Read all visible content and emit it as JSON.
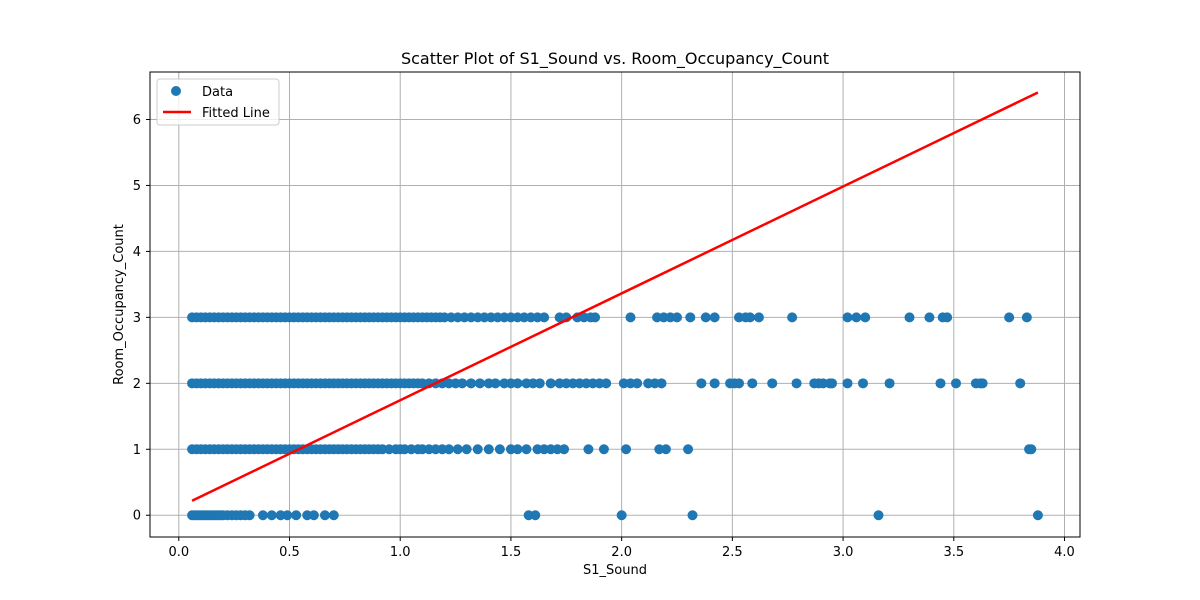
{
  "chart_data": {
    "type": "scatter",
    "title": "Scatter Plot of S1_Sound vs. Room_Occupancy_Count",
    "xlabel": "S1_Sound",
    "ylabel": "Room_Occupancy_Count",
    "xlim": [
      -0.13,
      4.07
    ],
    "ylim": [
      -0.33,
      6.72
    ],
    "xticks": [
      0.0,
      0.5,
      1.0,
      1.5,
      2.0,
      2.5,
      3.0,
      3.5,
      4.0
    ],
    "xtick_labels": [
      "0.0",
      "0.5",
      "1.0",
      "1.5",
      "2.0",
      "2.5",
      "3.0",
      "3.5",
      "4.0"
    ],
    "yticks": [
      0,
      1,
      2,
      3,
      4,
      5,
      6
    ],
    "ytick_labels": [
      "0",
      "1",
      "2",
      "3",
      "4",
      "5",
      "6"
    ],
    "grid": true,
    "legend_position": "upper-left",
    "series": [
      {
        "name": "Data",
        "kind": "scatter",
        "color": "#1f77b4",
        "points": [
          [
            0.06,
            0
          ],
          [
            0.07,
            0
          ],
          [
            0.08,
            0
          ],
          [
            0.09,
            0
          ],
          [
            0.1,
            0
          ],
          [
            0.11,
            0
          ],
          [
            0.12,
            0
          ],
          [
            0.13,
            0
          ],
          [
            0.14,
            0
          ],
          [
            0.15,
            0
          ],
          [
            0.16,
            0
          ],
          [
            0.17,
            0
          ],
          [
            0.18,
            0
          ],
          [
            0.19,
            0
          ],
          [
            0.2,
            0
          ],
          [
            0.22,
            0
          ],
          [
            0.24,
            0
          ],
          [
            0.26,
            0
          ],
          [
            0.28,
            0
          ],
          [
            0.3,
            0
          ],
          [
            0.32,
            0
          ],
          [
            0.38,
            0
          ],
          [
            0.42,
            0
          ],
          [
            0.46,
            0
          ],
          [
            0.49,
            0
          ],
          [
            0.53,
            0
          ],
          [
            0.58,
            0
          ],
          [
            0.61,
            0
          ],
          [
            0.66,
            0
          ],
          [
            0.7,
            0
          ],
          [
            1.58,
            0
          ],
          [
            1.61,
            0
          ],
          [
            2.0,
            0
          ],
          [
            2.32,
            0
          ],
          [
            3.16,
            0
          ],
          [
            3.88,
            0
          ],
          [
            0.06,
            1
          ],
          [
            0.08,
            1
          ],
          [
            0.1,
            1
          ],
          [
            0.12,
            1
          ],
          [
            0.14,
            1
          ],
          [
            0.16,
            1
          ],
          [
            0.18,
            1
          ],
          [
            0.2,
            1
          ],
          [
            0.22,
            1
          ],
          [
            0.24,
            1
          ],
          [
            0.26,
            1
          ],
          [
            0.28,
            1
          ],
          [
            0.3,
            1
          ],
          [
            0.32,
            1
          ],
          [
            0.34,
            1
          ],
          [
            0.36,
            1
          ],
          [
            0.38,
            1
          ],
          [
            0.4,
            1
          ],
          [
            0.42,
            1
          ],
          [
            0.44,
            1
          ],
          [
            0.46,
            1
          ],
          [
            0.48,
            1
          ],
          [
            0.5,
            1
          ],
          [
            0.52,
            1
          ],
          [
            0.54,
            1
          ],
          [
            0.56,
            1
          ],
          [
            0.58,
            1
          ],
          [
            0.6,
            1
          ],
          [
            0.62,
            1
          ],
          [
            0.64,
            1
          ],
          [
            0.66,
            1
          ],
          [
            0.68,
            1
          ],
          [
            0.7,
            1
          ],
          [
            0.72,
            1
          ],
          [
            0.74,
            1
          ],
          [
            0.76,
            1
          ],
          [
            0.78,
            1
          ],
          [
            0.8,
            1
          ],
          [
            0.82,
            1
          ],
          [
            0.84,
            1
          ],
          [
            0.86,
            1
          ],
          [
            0.88,
            1
          ],
          [
            0.9,
            1
          ],
          [
            0.92,
            1
          ],
          [
            0.95,
            1
          ],
          [
            0.98,
            1
          ],
          [
            1.0,
            1
          ],
          [
            1.02,
            1
          ],
          [
            1.05,
            1
          ],
          [
            1.08,
            1
          ],
          [
            1.1,
            1
          ],
          [
            1.13,
            1
          ],
          [
            1.16,
            1
          ],
          [
            1.19,
            1
          ],
          [
            1.22,
            1
          ],
          [
            1.26,
            1
          ],
          [
            1.3,
            1
          ],
          [
            1.35,
            1
          ],
          [
            1.4,
            1
          ],
          [
            1.45,
            1
          ],
          [
            1.5,
            1
          ],
          [
            1.53,
            1
          ],
          [
            1.57,
            1
          ],
          [
            1.62,
            1
          ],
          [
            1.65,
            1
          ],
          [
            1.68,
            1
          ],
          [
            1.71,
            1
          ],
          [
            1.74,
            1
          ],
          [
            1.85,
            1
          ],
          [
            1.92,
            1
          ],
          [
            2.02,
            1
          ],
          [
            2.17,
            1
          ],
          [
            2.2,
            1
          ],
          [
            2.3,
            1
          ],
          [
            3.84,
            1
          ],
          [
            3.85,
            1
          ],
          [
            0.06,
            2
          ],
          [
            0.08,
            2
          ],
          [
            0.1,
            2
          ],
          [
            0.12,
            2
          ],
          [
            0.14,
            2
          ],
          [
            0.16,
            2
          ],
          [
            0.18,
            2
          ],
          [
            0.2,
            2
          ],
          [
            0.22,
            2
          ],
          [
            0.24,
            2
          ],
          [
            0.26,
            2
          ],
          [
            0.28,
            2
          ],
          [
            0.3,
            2
          ],
          [
            0.32,
            2
          ],
          [
            0.34,
            2
          ],
          [
            0.36,
            2
          ],
          [
            0.38,
            2
          ],
          [
            0.4,
            2
          ],
          [
            0.42,
            2
          ],
          [
            0.44,
            2
          ],
          [
            0.46,
            2
          ],
          [
            0.48,
            2
          ],
          [
            0.5,
            2
          ],
          [
            0.52,
            2
          ],
          [
            0.54,
            2
          ],
          [
            0.56,
            2
          ],
          [
            0.58,
            2
          ],
          [
            0.6,
            2
          ],
          [
            0.62,
            2
          ],
          [
            0.64,
            2
          ],
          [
            0.66,
            2
          ],
          [
            0.68,
            2
          ],
          [
            0.7,
            2
          ],
          [
            0.72,
            2
          ],
          [
            0.74,
            2
          ],
          [
            0.76,
            2
          ],
          [
            0.78,
            2
          ],
          [
            0.8,
            2
          ],
          [
            0.82,
            2
          ],
          [
            0.84,
            2
          ],
          [
            0.86,
            2
          ],
          [
            0.88,
            2
          ],
          [
            0.9,
            2
          ],
          [
            0.92,
            2
          ],
          [
            0.94,
            2
          ],
          [
            0.96,
            2
          ],
          [
            0.98,
            2
          ],
          [
            1.0,
            2
          ],
          [
            1.02,
            2
          ],
          [
            1.04,
            2
          ],
          [
            1.06,
            2
          ],
          [
            1.08,
            2
          ],
          [
            1.1,
            2
          ],
          [
            1.13,
            2
          ],
          [
            1.16,
            2
          ],
          [
            1.19,
            2
          ],
          [
            1.22,
            2
          ],
          [
            1.25,
            2
          ],
          [
            1.28,
            2
          ],
          [
            1.32,
            2
          ],
          [
            1.36,
            2
          ],
          [
            1.4,
            2
          ],
          [
            1.43,
            2
          ],
          [
            1.47,
            2
          ],
          [
            1.5,
            2
          ],
          [
            1.53,
            2
          ],
          [
            1.57,
            2
          ],
          [
            1.6,
            2
          ],
          [
            1.63,
            2
          ],
          [
            1.68,
            2
          ],
          [
            1.72,
            2
          ],
          [
            1.75,
            2
          ],
          [
            1.78,
            2
          ],
          [
            1.81,
            2
          ],
          [
            1.84,
            2
          ],
          [
            1.87,
            2
          ],
          [
            1.9,
            2
          ],
          [
            1.93,
            2
          ],
          [
            2.01,
            2
          ],
          [
            2.04,
            2
          ],
          [
            2.07,
            2
          ],
          [
            2.12,
            2
          ],
          [
            2.15,
            2
          ],
          [
            2.18,
            2
          ],
          [
            2.36,
            2
          ],
          [
            2.42,
            2
          ],
          [
            2.49,
            2
          ],
          [
            2.51,
            2
          ],
          [
            2.53,
            2
          ],
          [
            2.59,
            2
          ],
          [
            2.68,
            2
          ],
          [
            2.79,
            2
          ],
          [
            2.87,
            2
          ],
          [
            2.89,
            2
          ],
          [
            2.91,
            2
          ],
          [
            2.94,
            2
          ],
          [
            2.95,
            2
          ],
          [
            3.02,
            2
          ],
          [
            3.09,
            2
          ],
          [
            3.21,
            2
          ],
          [
            3.44,
            2
          ],
          [
            3.51,
            2
          ],
          [
            3.6,
            2
          ],
          [
            3.62,
            2
          ],
          [
            3.63,
            2
          ],
          [
            3.8,
            2
          ],
          [
            0.06,
            3
          ],
          [
            0.08,
            3
          ],
          [
            0.1,
            3
          ],
          [
            0.12,
            3
          ],
          [
            0.14,
            3
          ],
          [
            0.16,
            3
          ],
          [
            0.18,
            3
          ],
          [
            0.2,
            3
          ],
          [
            0.22,
            3
          ],
          [
            0.24,
            3
          ],
          [
            0.26,
            3
          ],
          [
            0.28,
            3
          ],
          [
            0.3,
            3
          ],
          [
            0.32,
            3
          ],
          [
            0.34,
            3
          ],
          [
            0.36,
            3
          ],
          [
            0.38,
            3
          ],
          [
            0.4,
            3
          ],
          [
            0.42,
            3
          ],
          [
            0.44,
            3
          ],
          [
            0.46,
            3
          ],
          [
            0.48,
            3
          ],
          [
            0.5,
            3
          ],
          [
            0.52,
            3
          ],
          [
            0.54,
            3
          ],
          [
            0.56,
            3
          ],
          [
            0.58,
            3
          ],
          [
            0.6,
            3
          ],
          [
            0.62,
            3
          ],
          [
            0.64,
            3
          ],
          [
            0.66,
            3
          ],
          [
            0.68,
            3
          ],
          [
            0.7,
            3
          ],
          [
            0.72,
            3
          ],
          [
            0.74,
            3
          ],
          [
            0.76,
            3
          ],
          [
            0.78,
            3
          ],
          [
            0.8,
            3
          ],
          [
            0.82,
            3
          ],
          [
            0.84,
            3
          ],
          [
            0.86,
            3
          ],
          [
            0.88,
            3
          ],
          [
            0.9,
            3
          ],
          [
            0.92,
            3
          ],
          [
            0.94,
            3
          ],
          [
            0.96,
            3
          ],
          [
            0.98,
            3
          ],
          [
            1.0,
            3
          ],
          [
            1.02,
            3
          ],
          [
            1.04,
            3
          ],
          [
            1.06,
            3
          ],
          [
            1.08,
            3
          ],
          [
            1.1,
            3
          ],
          [
            1.12,
            3
          ],
          [
            1.14,
            3
          ],
          [
            1.16,
            3
          ],
          [
            1.18,
            3
          ],
          [
            1.2,
            3
          ],
          [
            1.23,
            3
          ],
          [
            1.26,
            3
          ],
          [
            1.29,
            3
          ],
          [
            1.32,
            3
          ],
          [
            1.35,
            3
          ],
          [
            1.38,
            3
          ],
          [
            1.41,
            3
          ],
          [
            1.44,
            3
          ],
          [
            1.47,
            3
          ],
          [
            1.5,
            3
          ],
          [
            1.53,
            3
          ],
          [
            1.56,
            3
          ],
          [
            1.59,
            3
          ],
          [
            1.62,
            3
          ],
          [
            1.65,
            3
          ],
          [
            1.72,
            3
          ],
          [
            1.75,
            3
          ],
          [
            1.8,
            3
          ],
          [
            1.83,
            3
          ],
          [
            1.86,
            3
          ],
          [
            1.88,
            3
          ],
          [
            2.04,
            3
          ],
          [
            2.16,
            3
          ],
          [
            2.19,
            3
          ],
          [
            2.22,
            3
          ],
          [
            2.25,
            3
          ],
          [
            2.31,
            3
          ],
          [
            2.38,
            3
          ],
          [
            2.42,
            3
          ],
          [
            2.53,
            3
          ],
          [
            2.56,
            3
          ],
          [
            2.58,
            3
          ],
          [
            2.62,
            3
          ],
          [
            2.77,
            3
          ],
          [
            3.02,
            3
          ],
          [
            3.06,
            3
          ],
          [
            3.1,
            3
          ],
          [
            3.3,
            3
          ],
          [
            3.39,
            3
          ],
          [
            3.45,
            3
          ],
          [
            3.47,
            3
          ],
          [
            3.75,
            3
          ],
          [
            3.83,
            3
          ]
        ]
      },
      {
        "name": "Fitted Line",
        "kind": "line",
        "color": "#ff0000",
        "x": [
          0.06,
          3.88
        ],
        "y": [
          0.22,
          6.41
        ]
      }
    ]
  }
}
